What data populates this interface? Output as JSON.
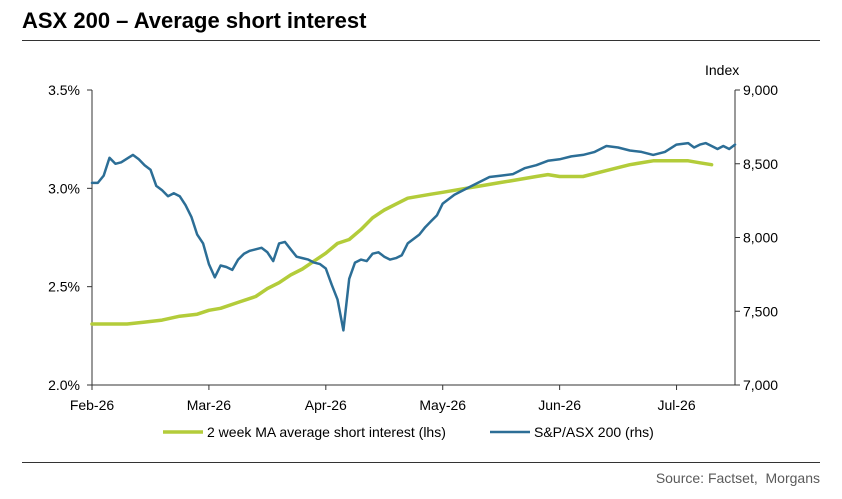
{
  "title": "ASX 200 – Average short interest",
  "source": "Source: Factset,  Morgans",
  "colors": {
    "short_interest": "#b3cc3a",
    "asx200": "#2c6e96",
    "axis": "#333333"
  },
  "chart_data": {
    "type": "line",
    "y_left_label": "",
    "y_right_label": "Index",
    "y_left_ticks": [
      "3.5%",
      "3.0%",
      "2.5%",
      "2.0%"
    ],
    "y_right_ticks": [
      "9,000",
      "8,500",
      "8,000",
      "7,500",
      "7,000"
    ],
    "x_ticks": [
      "Feb-26",
      "Mar-26",
      "Apr-26",
      "May-26",
      "Jun-26",
      "Jul-26"
    ],
    "ylim_left": [
      2.0,
      3.5
    ],
    "ylim_right": [
      7000,
      9000
    ],
    "xlim": [
      0,
      5.5
    ],
    "legend_position": "bottom",
    "series": [
      {
        "name": "2 week MA average short interest (lhs)",
        "axis": "left",
        "x": [
          0,
          0.15,
          0.3,
          0.45,
          0.6,
          0.75,
          0.9,
          1.0,
          1.1,
          1.25,
          1.4,
          1.5,
          1.6,
          1.7,
          1.8,
          1.9,
          2.0,
          2.1,
          2.2,
          2.3,
          2.4,
          2.5,
          2.6,
          2.7,
          2.8,
          2.9,
          3.0,
          3.1,
          3.2,
          3.3,
          3.4,
          3.5,
          3.6,
          3.7,
          3.8,
          3.9,
          4.0,
          4.2,
          4.4,
          4.6,
          4.8,
          4.9,
          5.0,
          5.1,
          5.2,
          5.3
        ],
        "y": [
          2.31,
          2.31,
          2.31,
          2.32,
          2.33,
          2.35,
          2.36,
          2.38,
          2.39,
          2.42,
          2.45,
          2.49,
          2.52,
          2.56,
          2.59,
          2.63,
          2.67,
          2.72,
          2.74,
          2.79,
          2.85,
          2.89,
          2.92,
          2.95,
          2.96,
          2.97,
          2.98,
          2.99,
          3.0,
          3.01,
          3.02,
          3.03,
          3.04,
          3.05,
          3.06,
          3.07,
          3.06,
          3.06,
          3.09,
          3.12,
          3.14,
          3.14,
          3.14,
          3.14,
          3.13,
          3.12
        ]
      },
      {
        "name": "S&P/ASX 200 (rhs)",
        "axis": "right",
        "x": [
          0,
          0.05,
          0.1,
          0.15,
          0.2,
          0.25,
          0.35,
          0.4,
          0.45,
          0.5,
          0.55,
          0.6,
          0.65,
          0.7,
          0.75,
          0.8,
          0.85,
          0.9,
          0.95,
          1.0,
          1.05,
          1.1,
          1.15,
          1.2,
          1.25,
          1.3,
          1.35,
          1.4,
          1.45,
          1.5,
          1.55,
          1.6,
          1.65,
          1.7,
          1.75,
          1.8,
          1.85,
          1.9,
          1.95,
          2.0,
          2.05,
          2.1,
          2.15,
          2.2,
          2.25,
          2.3,
          2.35,
          2.4,
          2.45,
          2.5,
          2.55,
          2.6,
          2.65,
          2.7,
          2.75,
          2.8,
          2.85,
          2.9,
          2.95,
          3.0,
          3.1,
          3.2,
          3.3,
          3.4,
          3.5,
          3.6,
          3.7,
          3.8,
          3.9,
          4.0,
          4.1,
          4.2,
          4.3,
          4.4,
          4.5,
          4.6,
          4.7,
          4.8,
          4.9,
          5.0,
          5.1,
          5.15,
          5.2,
          5.25,
          5.3,
          5.35,
          5.4,
          5.45,
          5.5
        ],
        "y": [
          8370,
          8370,
          8420,
          8540,
          8500,
          8510,
          8560,
          8530,
          8490,
          8460,
          8350,
          8320,
          8280,
          8300,
          8280,
          8220,
          8140,
          8020,
          7960,
          7820,
          7730,
          7810,
          7800,
          7780,
          7850,
          7890,
          7910,
          7920,
          7930,
          7900,
          7840,
          7960,
          7970,
          7920,
          7870,
          7860,
          7850,
          7830,
          7820,
          7790,
          7680,
          7580,
          7370,
          7720,
          7830,
          7850,
          7840,
          7890,
          7900,
          7870,
          7850,
          7860,
          7880,
          7960,
          7990,
          8020,
          8070,
          8110,
          8150,
          8230,
          8290,
          8330,
          8370,
          8410,
          8420,
          8430,
          8470,
          8490,
          8520,
          8530,
          8550,
          8560,
          8580,
          8620,
          8610,
          8590,
          8580,
          8560,
          8580,
          8630,
          8640,
          8610,
          8630,
          8640,
          8620,
          8600,
          8620,
          8600,
          8630
        ]
      }
    ]
  }
}
